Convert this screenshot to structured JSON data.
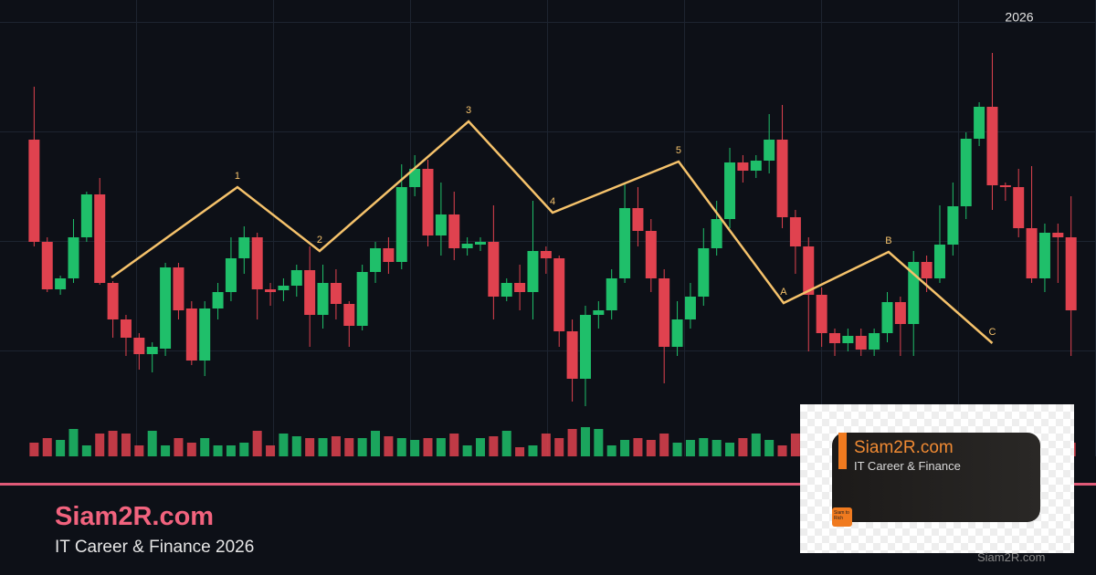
{
  "chart_data": {
    "type": "candlestick",
    "corner_label": "2026",
    "xlim": [
      -2.6,
      80.9
    ],
    "ylim": [
      -130,
      500
    ],
    "up_color": "#1fbf6a",
    "down_color": "#e0424f",
    "open": [
      347,
      235,
      183,
      195,
      240,
      287,
      190,
      150,
      130,
      112,
      118,
      207,
      162,
      105,
      162,
      180,
      217,
      240,
      183,
      182,
      187,
      204,
      155,
      190,
      167,
      143,
      202,
      228,
      213,
      295,
      315,
      242,
      265,
      228,
      232,
      235,
      175,
      190,
      180,
      225,
      217,
      137,
      85,
      155,
      160,
      195,
      272,
      247,
      195,
      120,
      150,
      175,
      228,
      260,
      322,
      313,
      324,
      347,
      262,
      230,
      177,
      135,
      124,
      132,
      117,
      135,
      169,
      145,
      213,
      195,
      232,
      274,
      348,
      383,
      297,
      295,
      250,
      195,
      245,
      240
    ],
    "high": [
      405,
      240,
      198,
      260,
      290,
      305,
      192,
      155,
      135,
      125,
      212,
      212,
      170,
      170,
      190,
      240,
      252,
      245,
      190,
      195,
      210,
      230,
      210,
      205,
      170,
      210,
      235,
      240,
      320,
      330,
      325,
      300,
      290,
      240,
      240,
      275,
      195,
      210,
      280,
      230,
      220,
      150,
      165,
      170,
      205,
      300,
      295,
      260,
      205,
      170,
      190,
      250,
      280,
      338,
      330,
      330,
      375,
      385,
      270,
      240,
      185,
      140,
      140,
      140,
      140,
      180,
      175,
      225,
      220,
      275,
      300,
      355,
      388,
      442,
      300,
      315,
      318,
      255,
      255,
      285
    ],
    "low": [
      230,
      180,
      177,
      190,
      235,
      188,
      130,
      110,
      95,
      92,
      110,
      150,
      100,
      88,
      150,
      170,
      200,
      150,
      165,
      170,
      175,
      120,
      140,
      150,
      120,
      138,
      190,
      200,
      205,
      285,
      230,
      220,
      215,
      220,
      225,
      150,
      170,
      160,
      150,
      200,
      120,
      60,
      55,
      140,
      150,
      190,
      230,
      180,
      80,
      110,
      140,
      165,
      220,
      250,
      300,
      305,
      310,
      250,
      200,
      115,
      120,
      110,
      115,
      110,
      110,
      125,
      110,
      110,
      180,
      190,
      220,
      260,
      340,
      270,
      280,
      240,
      190,
      180,
      190,
      110
    ],
    "close": [
      235,
      183,
      195,
      240,
      287,
      190,
      150,
      130,
      112,
      120,
      207,
      160,
      105,
      162,
      180,
      217,
      240,
      183,
      180,
      187,
      204,
      155,
      190,
      167,
      143,
      202,
      228,
      213,
      295,
      315,
      242,
      265,
      228,
      233,
      235,
      175,
      190,
      180,
      225,
      217,
      137,
      85,
      155,
      160,
      195,
      272,
      247,
      195,
      120,
      150,
      175,
      228,
      260,
      322,
      313,
      324,
      347,
      262,
      230,
      177,
      135,
      124,
      132,
      117,
      135,
      169,
      145,
      213,
      195,
      232,
      274,
      348,
      383,
      297,
      295,
      250,
      195,
      245,
      240,
      160
    ],
    "volume": [
      15,
      20,
      18,
      30,
      12,
      25,
      28,
      25,
      12,
      28,
      12,
      20,
      15,
      20,
      12,
      12,
      15,
      28,
      12,
      25,
      22,
      20,
      20,
      22,
      20,
      20,
      28,
      22,
      20,
      18,
      20,
      20,
      25,
      12,
      20,
      22,
      28,
      10,
      12,
      25,
      20,
      30,
      32,
      30,
      12,
      18,
      20,
      18,
      25,
      15,
      18,
      20,
      18,
      15,
      20,
      25,
      18,
      12,
      25,
      20,
      20,
      20,
      20,
      20,
      20,
      20,
      20,
      20,
      20,
      20,
      20,
      20,
      20,
      20,
      20,
      20,
      20,
      20,
      20,
      15
    ],
    "volume_ylim": [
      0,
      100
    ],
    "wave": {
      "color": "#f5c26b",
      "x": [
        5.89,
        15.49,
        21.75,
        33.1,
        39.5,
        49.1,
        57.1,
        65.1,
        73.0
      ],
      "values": [
        196,
        295,
        225,
        367,
        267,
        323,
        168,
        224,
        124
      ],
      "labels": [
        null,
        "1",
        "2",
        "3",
        "4",
        "5",
        "A",
        "B",
        "C"
      ]
    }
  },
  "footer": {
    "brand": "Siam2R.com",
    "tagline": "IT Career & Finance 2026"
  },
  "badge": {
    "brand": "Siam2R.com",
    "tagline": "IT Career & Finance",
    "logo": "Siam to Rich",
    "watermark": "Siam2R.com"
  }
}
